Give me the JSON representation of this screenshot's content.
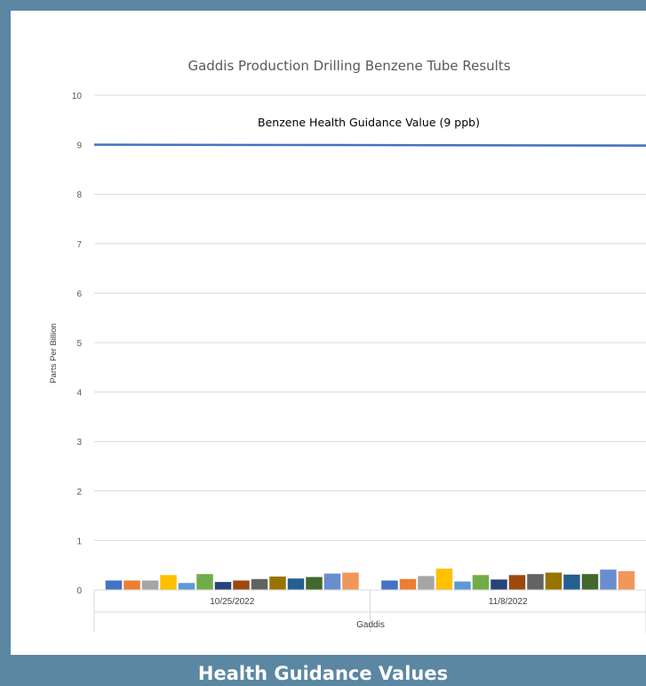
{
  "chart_data": {
    "type": "bar",
    "title": "Gaddis Production Drilling Benzene Tube Results",
    "ylabel": "Parts Per Billion",
    "xgroup_label": "Gaddis",
    "categories": [
      "10/25/2022",
      "11/8/2022"
    ],
    "ylim": [
      0,
      10
    ],
    "yticks": [
      "0",
      "1",
      "2",
      "3",
      "4",
      "5",
      "6",
      "7",
      "8",
      "9",
      "10"
    ],
    "grid": true,
    "legend": "none",
    "series": [
      {
        "color": "#4472c4",
        "values": [
          0.19,
          0.19
        ]
      },
      {
        "color": "#ed7d31",
        "values": [
          0.19,
          0.22
        ]
      },
      {
        "color": "#a5a5a5",
        "values": [
          0.19,
          0.28
        ]
      },
      {
        "color": "#ffc000",
        "values": [
          0.3,
          0.43
        ]
      },
      {
        "color": "#5b9bd5",
        "values": [
          0.14,
          0.17
        ]
      },
      {
        "color": "#70ad47",
        "values": [
          0.32,
          0.3
        ]
      },
      {
        "color": "#264478",
        "values": [
          0.16,
          0.21
        ]
      },
      {
        "color": "#9e480e",
        "values": [
          0.19,
          0.3
        ]
      },
      {
        "color": "#636363",
        "values": [
          0.22,
          0.32
        ]
      },
      {
        "color": "#997300",
        "values": [
          0.27,
          0.35
        ]
      },
      {
        "color": "#255e91",
        "values": [
          0.23,
          0.31
        ]
      },
      {
        "color": "#43682b",
        "values": [
          0.26,
          0.32
        ]
      },
      {
        "color": "#698ed0",
        "values": [
          0.33,
          0.41
        ]
      },
      {
        "color": "#f1975a",
        "values": [
          0.35,
          0.38
        ]
      }
    ],
    "reference_line": {
      "value": 9,
      "label": "Benzene Health Guidance Value (9 ppb)",
      "color": "#4472c4"
    }
  },
  "footer": {
    "title": "Health Guidance Values"
  }
}
